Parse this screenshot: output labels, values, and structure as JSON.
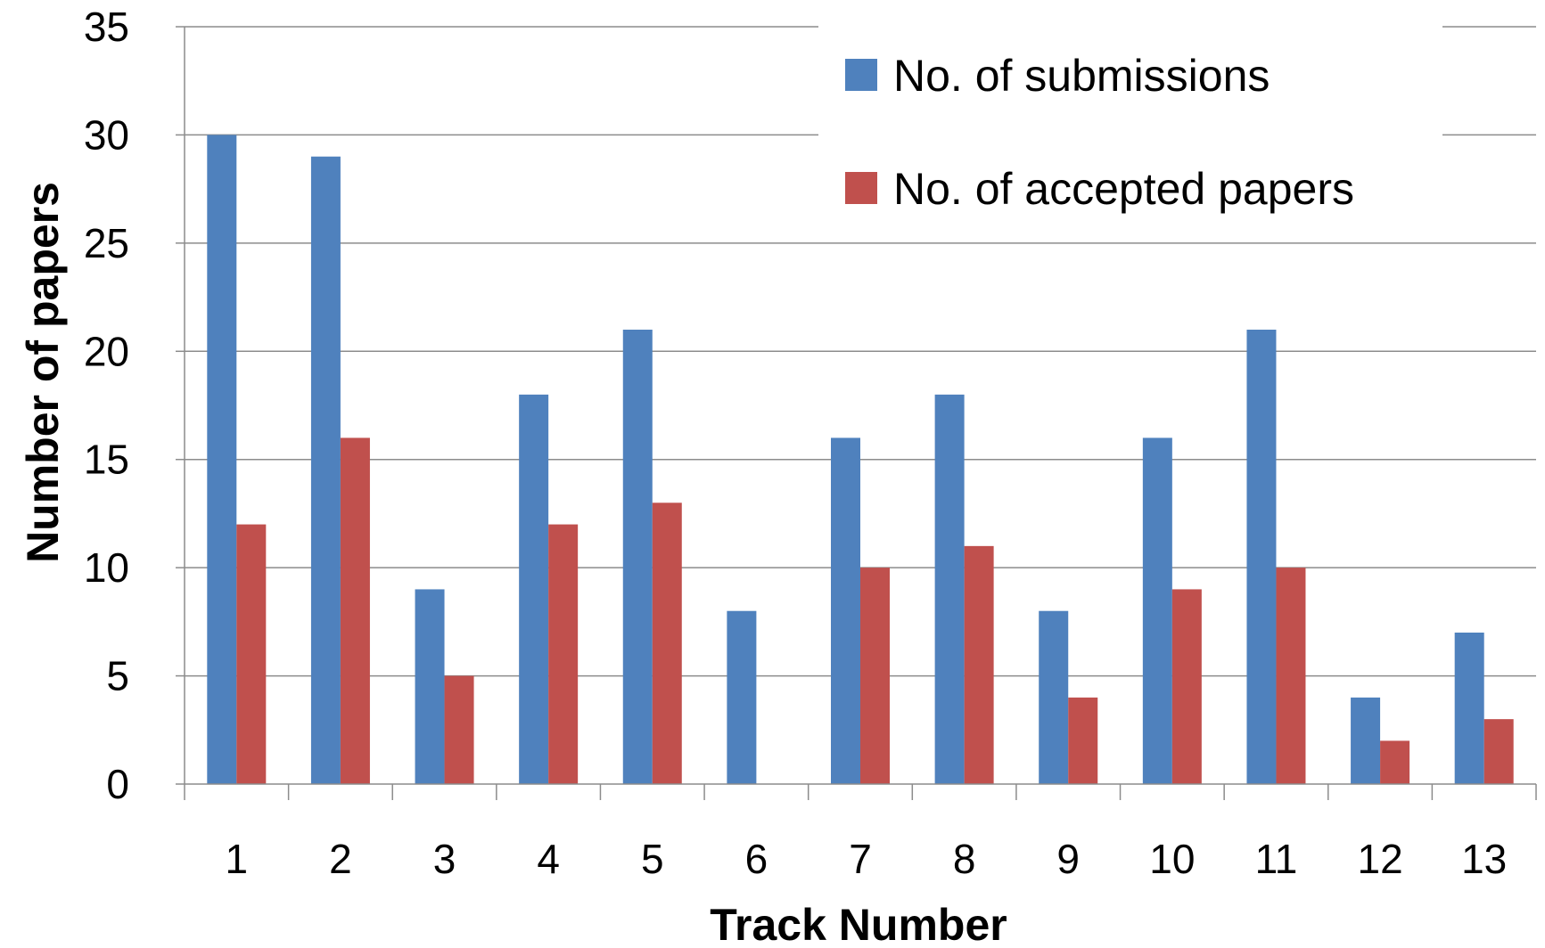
{
  "chart_data": {
    "type": "bar",
    "title": "",
    "xlabel": "Track Number",
    "ylabel": "Number of papers",
    "categories": [
      "1",
      "2",
      "3",
      "4",
      "5",
      "6",
      "7",
      "8",
      "9",
      "10",
      "11",
      "12",
      "13"
    ],
    "series": [
      {
        "name": "No. of submissions",
        "color": "#4F81BD",
        "values": [
          30,
          29,
          9,
          18,
          21,
          8,
          16,
          18,
          8,
          16,
          21,
          4,
          7
        ]
      },
      {
        "name": "No. of accepted papers",
        "color": "#C0504D",
        "values": [
          12,
          16,
          5,
          12,
          13,
          0,
          10,
          11,
          4,
          9,
          10,
          2,
          3
        ]
      }
    ],
    "ylim": [
      0,
      35
    ],
    "yticks": [
      "0",
      "5",
      "10",
      "15",
      "20",
      "25",
      "30",
      "35"
    ],
    "grid": true,
    "legend_position": "top-right"
  }
}
